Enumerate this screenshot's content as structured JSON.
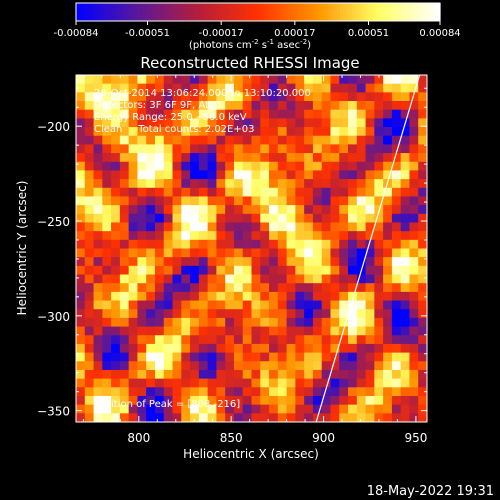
{
  "colorbar": {
    "tick_labels": [
      "-0.00084",
      "-0.00051",
      "-0.00017",
      "0.00017",
      "0.00051",
      "0.00084"
    ],
    "unit_label": "(photons cm",
    "unit_sup1": "-2",
    "unit_mid1": " s",
    "unit_sup2": "-1",
    "unit_mid2": " asec",
    "unit_sup3": "-2",
    "unit_end": ")"
  },
  "chart_data": {
    "type": "heatmap",
    "title": "Reconstructed RHESSI Image",
    "xlabel": "Heliocentric X (arcsec)",
    "ylabel": "Heliocentric Y (arcsec)",
    "xlim": [
      766,
      956
    ],
    "ylim": [
      -356,
      -173
    ],
    "x_ticks": [
      800,
      850,
      900,
      950
    ],
    "y_ticks": [
      -200,
      -250,
      -300,
      -350
    ],
    "colorbar_range": [
      -0.00084,
      0.00084
    ],
    "colormap": [
      "#0000ff",
      "#5a189a",
      "#b41e3c",
      "#ff3200",
      "#ff9600",
      "#ffff64",
      "#ffffff"
    ],
    "limb_line": [
      [
        896,
        -356
      ],
      [
        952,
        -173
      ]
    ],
    "peak": [
      808,
      -216
    ],
    "annotations": [
      "28-Oct-2014 13:06:24.000 to 13:10:20.000",
      "Detectors: 3F 6F 9F, Att 1",
      "Energy Range: 25.0 - 50.0 keV",
      "Clean     Total counts: 2.02E+03",
      "Position of Peak = [808,-216]"
    ]
  },
  "footer_date": "18-May-2022 19:31"
}
